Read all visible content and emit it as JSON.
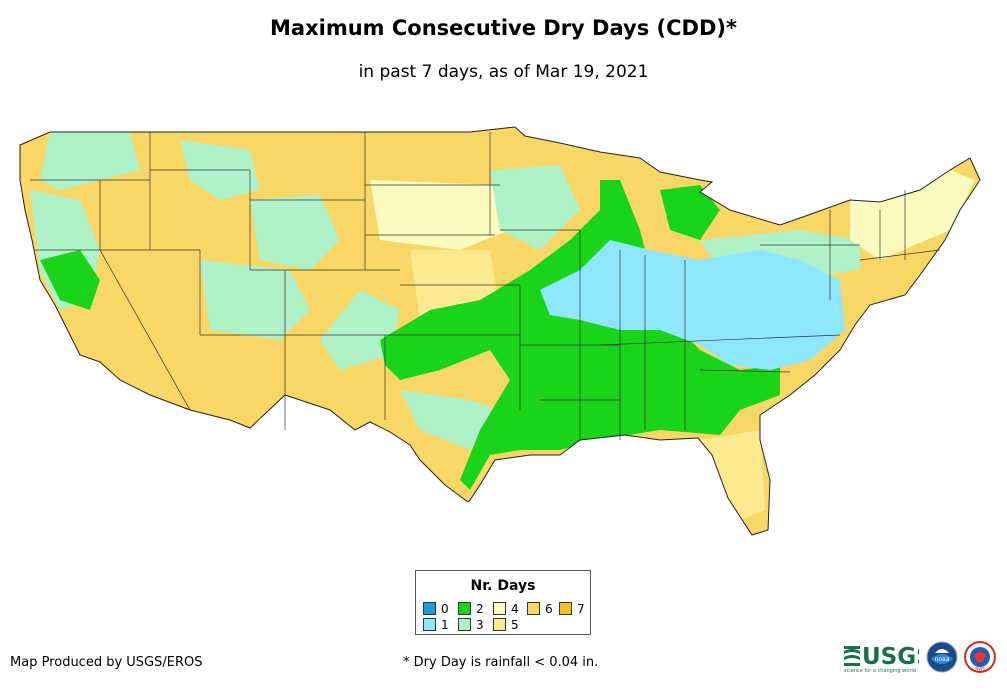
{
  "title": "Maximum Consecutive Dry Days (CDD)*",
  "subtitle": "in past 7 days, as of Mar 19, 2021",
  "legend": {
    "title": "Nr. Days",
    "items": [
      {
        "label": "0",
        "color": "#1a9bdd"
      },
      {
        "label": "1",
        "color": "#8fe6ff"
      },
      {
        "label": "2",
        "color": "#1ad41a"
      },
      {
        "label": "3",
        "color": "#b0f2c8"
      },
      {
        "label": "4",
        "color": "#fbfbc0"
      },
      {
        "label": "5",
        "color": "#fde990"
      },
      {
        "label": "6",
        "color": "#f9d766"
      },
      {
        "label": "7",
        "color": "#f6c21e"
      }
    ]
  },
  "footer": {
    "credit": "Map Produced by USGS/EROS",
    "note": "* Dry Day is rainfall < 0.04 in."
  },
  "logos": {
    "usgs": "USGS",
    "usgs_tagline": "science for a changing world",
    "noaa": "noaa",
    "nws": "NWS"
  }
}
